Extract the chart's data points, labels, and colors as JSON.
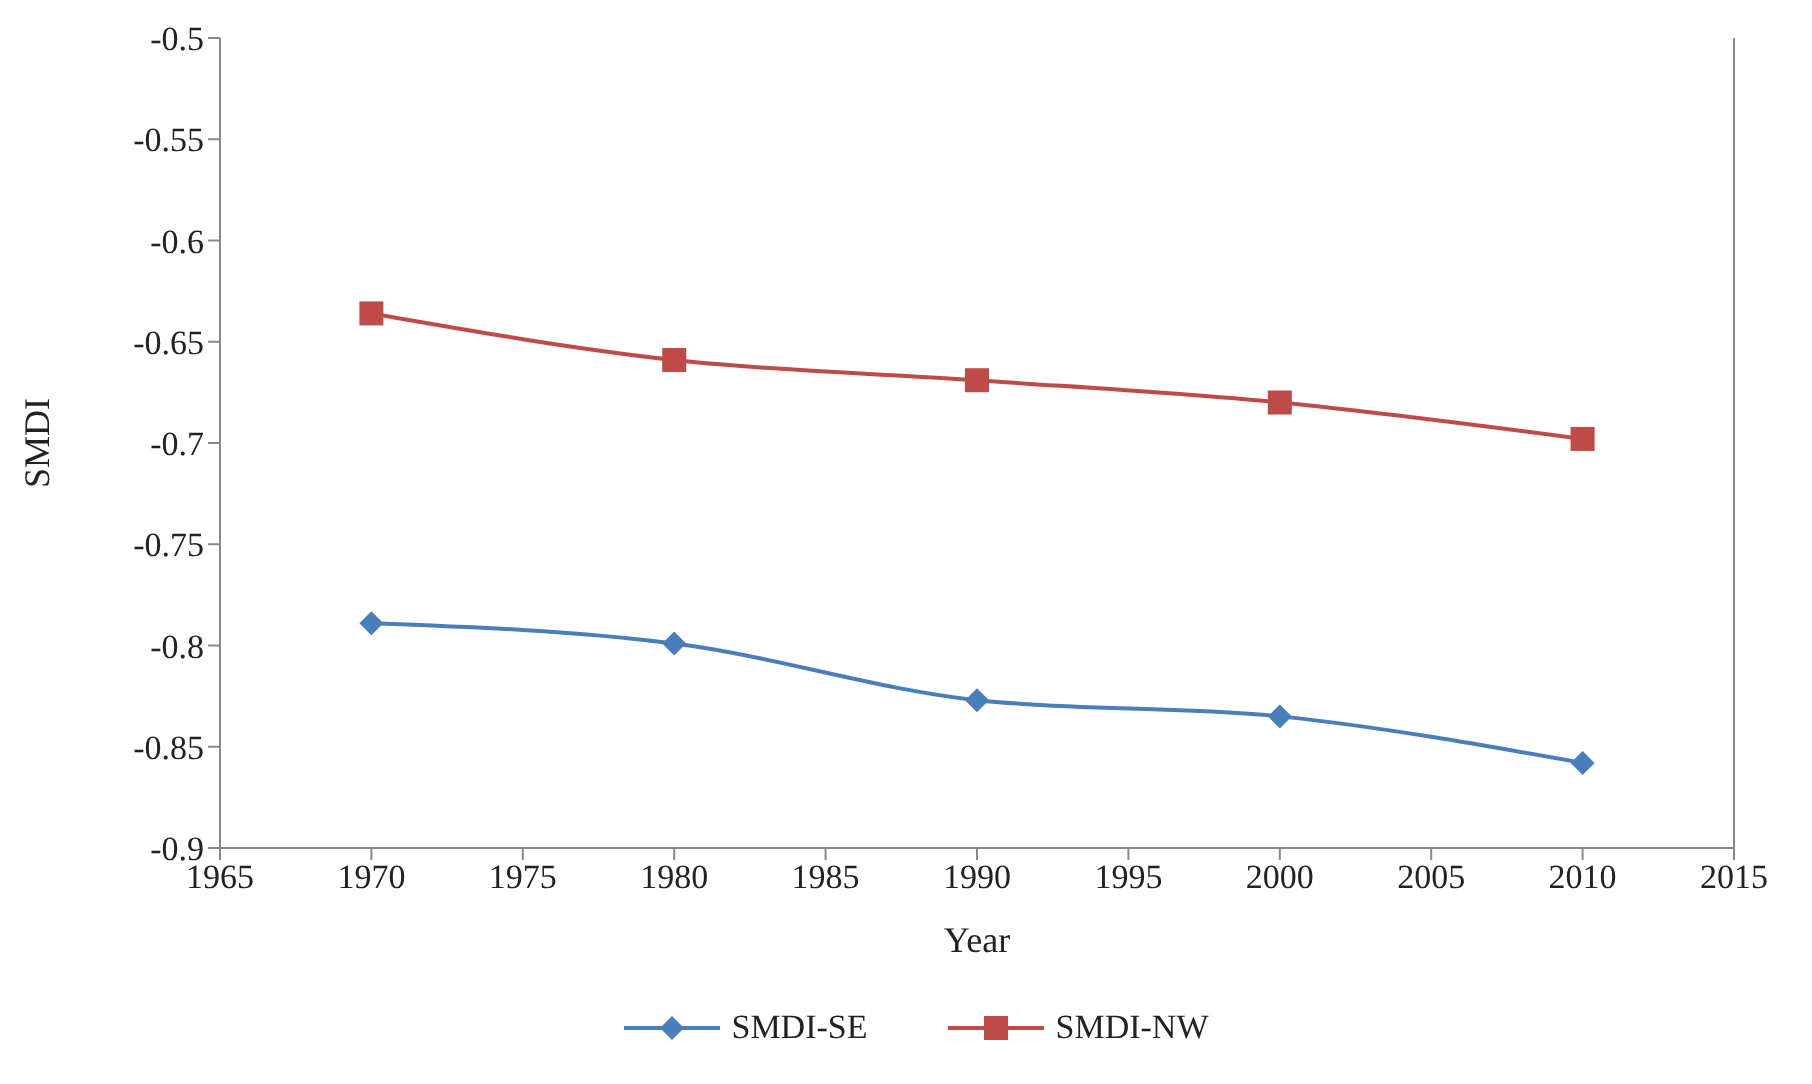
{
  "chart_data": {
    "type": "line",
    "xlabel": "Year",
    "ylabel": "SMDI",
    "x": [
      1970,
      1980,
      1990,
      2000,
      2010
    ],
    "series": [
      {
        "name": "SMDI-SE",
        "color": "#4a7ebb",
        "marker": "diamond",
        "values": [
          -0.789,
          -0.799,
          -0.827,
          -0.835,
          -0.858
        ]
      },
      {
        "name": "SMDI-NW",
        "color": "#be4b48",
        "marker": "square",
        "values": [
          -0.636,
          -0.659,
          -0.669,
          -0.68,
          -0.698
        ]
      }
    ],
    "xlim": [
      1965,
      2015
    ],
    "xticks": [
      1965,
      1970,
      1975,
      1980,
      1985,
      1990,
      1995,
      2000,
      2005,
      2010,
      2015
    ],
    "ylim": [
      -0.9,
      -0.5
    ],
    "yticks": [
      -0.9,
      -0.85,
      -0.8,
      -0.75,
      -0.7,
      -0.65,
      -0.6,
      -0.55,
      -0.5
    ],
    "grid": false,
    "legend": "bottom"
  }
}
